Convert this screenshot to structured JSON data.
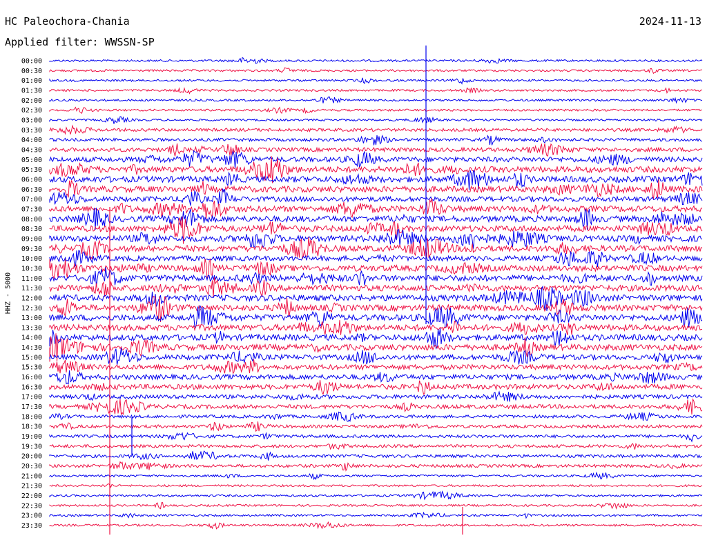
{
  "header": {
    "station": "HC Paleochora-Chania",
    "date": "2024-11-13",
    "filter": "Applied filter: WWSSN-SP"
  },
  "chart_data": {
    "type": "line",
    "title": "HC Paleochora-Chania",
    "subtitle": "Applied filter: WWSSN-SP",
    "ylabel": "HHZ - 5000",
    "xlabel": "",
    "row_labels": [
      "00:00",
      "00:30",
      "01:00",
      "01:30",
      "02:00",
      "02:30",
      "03:00",
      "03:30",
      "04:00",
      "04:30",
      "05:00",
      "05:30",
      "06:00",
      "06:30",
      "07:00",
      "07:30",
      "08:00",
      "08:30",
      "09:00",
      "09:30",
      "10:00",
      "10:30",
      "11:00",
      "11:30",
      "12:00",
      "12:30",
      "13:00",
      "13:30",
      "14:00",
      "14:30",
      "15:00",
      "15:30",
      "16:00",
      "16:30",
      "17:00",
      "17:30",
      "18:00",
      "18:30",
      "19:00",
      "19:30",
      "20:00",
      "20:30",
      "21:00",
      "21:30",
      "22:00",
      "22:30",
      "23:00",
      "23:30"
    ],
    "trace_colors": [
      "#0000ee",
      "#ee1144"
    ],
    "grid": false,
    "activity_profile": [
      1,
      1,
      1,
      1,
      1,
      1,
      1,
      2,
      2,
      3,
      4,
      5,
      5,
      5,
      4,
      5,
      5,
      5,
      5,
      5,
      4,
      5,
      5,
      5,
      5,
      5,
      5,
      5,
      5,
      5,
      4,
      4,
      4,
      4,
      3,
      3,
      2,
      2,
      2,
      2,
      2,
      2,
      1,
      1,
      1,
      1,
      1,
      1
    ]
  }
}
